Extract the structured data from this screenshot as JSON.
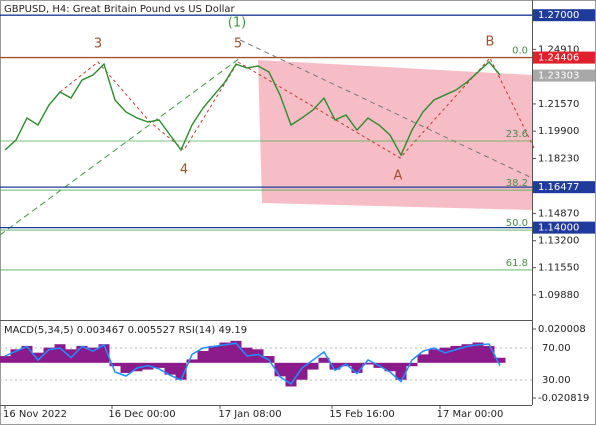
{
  "chart_data": [
    {
      "type": "line",
      "title": "GBPUSD, H4:  Great Britain Pound vs US Dollar",
      "color": "#2e8b2e",
      "values": [
        1.1875,
        1.1936,
        1.2071,
        1.2028,
        1.215,
        1.223,
        1.2193,
        1.2303,
        1.2334,
        1.2401,
        1.2181,
        1.2108,
        1.2071,
        1.2046,
        1.2059,
        1.1967,
        1.1875,
        1.2028,
        1.2132,
        1.2212,
        1.2291,
        1.2401,
        1.2377,
        1.2389,
        1.2352,
        1.2212,
        1.2028,
        1.2071,
        1.212,
        1.2193,
        1.2059,
        1.2089,
        1.1997,
        1.2071,
        1.2028,
        1.1967,
        1.1844,
        1.1997,
        1.2108,
        1.2181,
        1.2212,
        1.2242,
        1.2291,
        1.2352,
        1.2414,
        1.2334
      ],
      "ylim": [
        1.0847,
        1.2793
      ],
      "yticks": [
        {
          "value": 1.2491,
          "label": "1.24910"
        },
        {
          "value": 1.2157,
          "label": "1.21570"
        },
        {
          "value": 1.199,
          "label": "1.19900"
        },
        {
          "value": 1.1823,
          "label": "1.18230"
        },
        {
          "value": 1.1487,
          "label": "1.14870"
        },
        {
          "value": 1.132,
          "label": "1.13200"
        },
        {
          "value": 1.1155,
          "label": "1.11550"
        },
        {
          "value": 1.0988,
          "label": "1.09880"
        }
      ],
      "levels": [
        {
          "value": 1.27,
          "label": "1.27000",
          "color": "#1f3b9b"
        },
        {
          "value": 1.24406,
          "label": "1.24406",
          "color": "#e0202a"
        },
        {
          "value": 1.23303,
          "label": "1.23303",
          "color": "#a8a8a8"
        },
        {
          "value": 1.16477,
          "label": "1.16477",
          "color": "#1f3b9b"
        },
        {
          "value": 1.14,
          "label": "1.14000",
          "color": "#1f3b9b"
        }
      ],
      "fib_levels": [
        {
          "value": 1.2441,
          "label": "0.0"
        },
        {
          "value": 1.193,
          "label": "23.6"
        },
        {
          "value": 1.163,
          "label": "38.2"
        },
        {
          "value": 1.1385,
          "label": "50.0"
        },
        {
          "value": 1.1141,
          "label": "61.8"
        }
      ],
      "wave_labels": [
        "(1)",
        "3",
        "5",
        "4",
        "A",
        "B"
      ],
      "x_labels": [
        "16 Nov 2022",
        "16 Dec 00:00",
        "17 Jan 08:00",
        "15 Feb 16:00",
        "17 Mar 00:00"
      ]
    },
    {
      "type": "indicator",
      "header": "MACD(5,34,5) 0.003467 0.005527 RSI(14) 49.19",
      "histogram_color": "#8b1a8b",
      "histogram": [
        0.004,
        0.008,
        0.01,
        0.006,
        0.009,
        0.011,
        0.008,
        0.01,
        0.009,
        0.011,
        -0.002,
        -0.006,
        -0.005,
        -0.004,
        -0.003,
        -0.007,
        -0.01,
        0.002,
        0.007,
        0.01,
        0.012,
        0.013,
        0.009,
        0.008,
        0.004,
        -0.008,
        -0.014,
        -0.01,
        -0.004,
        0.003,
        -0.004,
        -0.002,
        -0.006,
        -0.001,
        -0.003,
        -0.005,
        -0.01,
        -0.002,
        0.005,
        0.008,
        0.009,
        0.01,
        0.011,
        0.012,
        0.01,
        0.003
      ],
      "ylim": [
        -0.020819,
        0.020008
      ],
      "yticks": [
        {
          "value": 0.020008,
          "label": "0.020008"
        },
        {
          "value": -0.020819,
          "label": "-0.020819"
        }
      ],
      "rsi_color": "#1e90ff",
      "rsi": [
        60,
        66,
        72,
        55,
        68,
        70,
        58,
        72,
        66,
        74,
        40,
        35,
        45,
        48,
        44,
        36,
        30,
        62,
        70,
        72,
        74,
        76,
        60,
        62,
        55,
        34,
        25,
        45,
        55,
        65,
        42,
        50,
        38,
        55,
        48,
        40,
        28,
        55,
        66,
        70,
        64,
        68,
        72,
        74,
        75,
        48
      ],
      "y2lim": [
        0,
        100
      ],
      "y2ticks": [
        {
          "value": 70,
          "label": "70.00"
        },
        {
          "value": 30,
          "label": "30.00"
        }
      ]
    }
  ]
}
